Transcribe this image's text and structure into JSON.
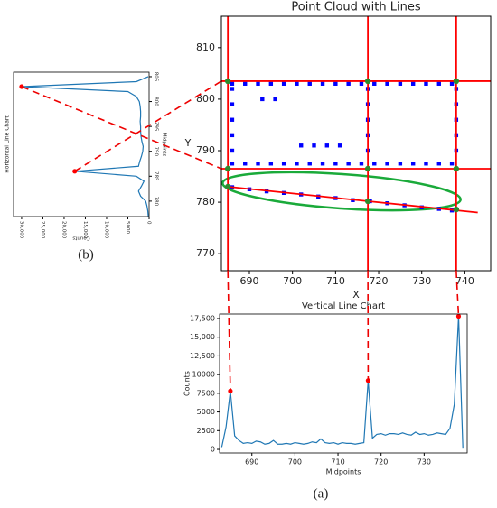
{
  "chart_data": [
    {
      "type": "scatter",
      "title": "Point Cloud with Lines",
      "xlabel": "X",
      "ylabel": "Y",
      "xlim": [
        683.5,
        746
      ],
      "ylim": [
        766.7,
        816.1
      ],
      "xticks": [
        690,
        700,
        710,
        720,
        730,
        740
      ],
      "yticks": [
        770,
        780,
        790,
        800,
        810
      ],
      "points": {
        "color": "#0000ff",
        "x": [
          686,
          689,
          692,
          695,
          698,
          701,
          704,
          707,
          710,
          713,
          716,
          686,
          689,
          692,
          695,
          698,
          701,
          704,
          707,
          710,
          713,
          716,
          686,
          686,
          686,
          686,
          686,
          717.5,
          717.5,
          717.5,
          717.5,
          717.5,
          719,
          722,
          725,
          728,
          731,
          734,
          737,
          719,
          722,
          725,
          728,
          731,
          734,
          737,
          738,
          738,
          738,
          738,
          738,
          702,
          705,
          708,
          711,
          693,
          696,
          686,
          690,
          694,
          698,
          702,
          706,
          710,
          714,
          718,
          722,
          726,
          730,
          734,
          737
        ],
        "y": [
          803,
          803,
          803,
          803,
          803,
          803,
          803,
          803,
          803,
          803,
          803,
          787.5,
          787.5,
          787.5,
          787.5,
          787.5,
          787.5,
          787.5,
          787.5,
          787.5,
          787.5,
          787.5,
          790,
          793,
          796,
          799,
          802,
          790,
          793,
          796,
          799,
          802,
          803,
          803,
          803,
          803,
          803,
          803,
          803,
          787.5,
          787.5,
          787.5,
          787.5,
          787.5,
          787.5,
          787.5,
          790,
          793,
          796,
          799,
          802,
          791,
          791,
          791,
          791,
          800,
          800,
          782.9,
          782.5,
          782.1,
          781.8,
          781.5,
          781.1,
          780.8,
          780.4,
          780.2,
          779.8,
          779.4,
          779.0,
          778.7,
          778.4
        ]
      },
      "vlines": {
        "color": "#ff0000",
        "values": [
          685,
          717.5,
          738
        ]
      },
      "hlines": {
        "color": "#ff0000",
        "values": [
          803.5,
          786.5
        ]
      },
      "fit_line": {
        "color": "#ff0000",
        "x": [
          685,
          743
        ],
        "y": [
          783,
          778
        ]
      },
      "intersections": {
        "color": "#2e8b2e",
        "x": [
          685,
          717.5,
          738,
          685,
          717.5,
          738,
          685,
          717.5,
          738
        ],
        "y": [
          803.5,
          803.5,
          803.5,
          786.5,
          786.5,
          786.5,
          783,
          780.2,
          778.6
        ]
      }
    },
    {
      "type": "line",
      "title": "Vertical Line Chart",
      "xlabel": "Midpoints",
      "ylabel": "Counts",
      "panel_label": "(a)",
      "color": "#1f77b4",
      "x": [
        683,
        684,
        685,
        686,
        687,
        688,
        689,
        690,
        691,
        692,
        693,
        694,
        695,
        696,
        697,
        698,
        699,
        700,
        701,
        702,
        703,
        704,
        705,
        706,
        707,
        708,
        709,
        710,
        711,
        712,
        713,
        714,
        715,
        716,
        717,
        718,
        719,
        720,
        721,
        722,
        723,
        724,
        725,
        726,
        727,
        728,
        729,
        730,
        731,
        732,
        733,
        734,
        735,
        736,
        737,
        738,
        739
      ],
      "values": [
        300,
        3000,
        7800,
        1800,
        1200,
        800,
        900,
        800,
        1100,
        1000,
        700,
        800,
        1200,
        700,
        700,
        800,
        700,
        900,
        800,
        700,
        800,
        1000,
        900,
        1400,
        900,
        800,
        900,
        700,
        900,
        800,
        800,
        700,
        800,
        900,
        9200,
        1500,
        2000,
        2100,
        1900,
        2100,
        2100,
        2000,
        2200,
        2000,
        1900,
        2300,
        2000,
        2100,
        1900,
        2000,
        2200,
        2100,
        2000,
        2800,
        6000,
        17800,
        100
      ],
      "peaks": {
        "color": "#ff0000",
        "x": [
          685,
          717,
          738
        ],
        "y": [
          7800,
          9200,
          17800
        ]
      },
      "xlim": [
        682.5,
        740
      ],
      "ylim": [
        -480,
        18100
      ],
      "xticks": [
        690,
        700,
        710,
        720,
        730
      ],
      "yticks": [
        0,
        2500,
        5000,
        7500,
        10000,
        {
          "value": 12500,
          "label": "12,500"
        },
        {
          "value": 15000,
          "label": "15,000"
        },
        {
          "value": 17500,
          "label": "17,500"
        }
      ]
    },
    {
      "type": "line",
      "rotated": true,
      "title": "Horizontal Line Chart",
      "xlabel": "Midpoints",
      "ylabel": "Counts",
      "panel_label": "(b)",
      "color": "#1f77b4",
      "x": [
        777,
        778,
        779,
        780,
        781,
        782,
        783,
        784,
        785,
        786,
        787,
        788,
        789,
        790,
        791,
        792,
        793,
        794,
        795,
        796,
        797,
        798,
        799,
        800,
        801,
        802,
        803,
        804,
        805
      ],
      "values": [
        200,
        300,
        500,
        800,
        2000,
        2500,
        1800,
        1200,
        3000,
        17500,
        2500,
        2200,
        1800,
        1500,
        1400,
        1700,
        1900,
        2000,
        2000,
        2100,
        2000,
        2000,
        2100,
        2300,
        3000,
        5000,
        30000,
        3000,
        200
      ],
      "peaks": {
        "color": "#ff0000",
        "x": [
          786,
          803
        ],
        "y": [
          17500,
          30000
        ]
      },
      "xlim": [
        776.9,
        805.9
      ],
      "ylim": [
        0,
        31900
      ],
      "xticks": [
        780,
        785,
        790,
        795,
        800,
        805
      ],
      "yticks": [
        0,
        5000,
        {
          "value": 10000,
          "label": "10,000"
        },
        {
          "value": 15000,
          "label": "15,000"
        },
        {
          "value": 20000,
          "label": "20,000"
        },
        {
          "value": 25000,
          "label": "25,000"
        },
        {
          "value": 30000,
          "label": "30,000"
        }
      ]
    }
  ]
}
